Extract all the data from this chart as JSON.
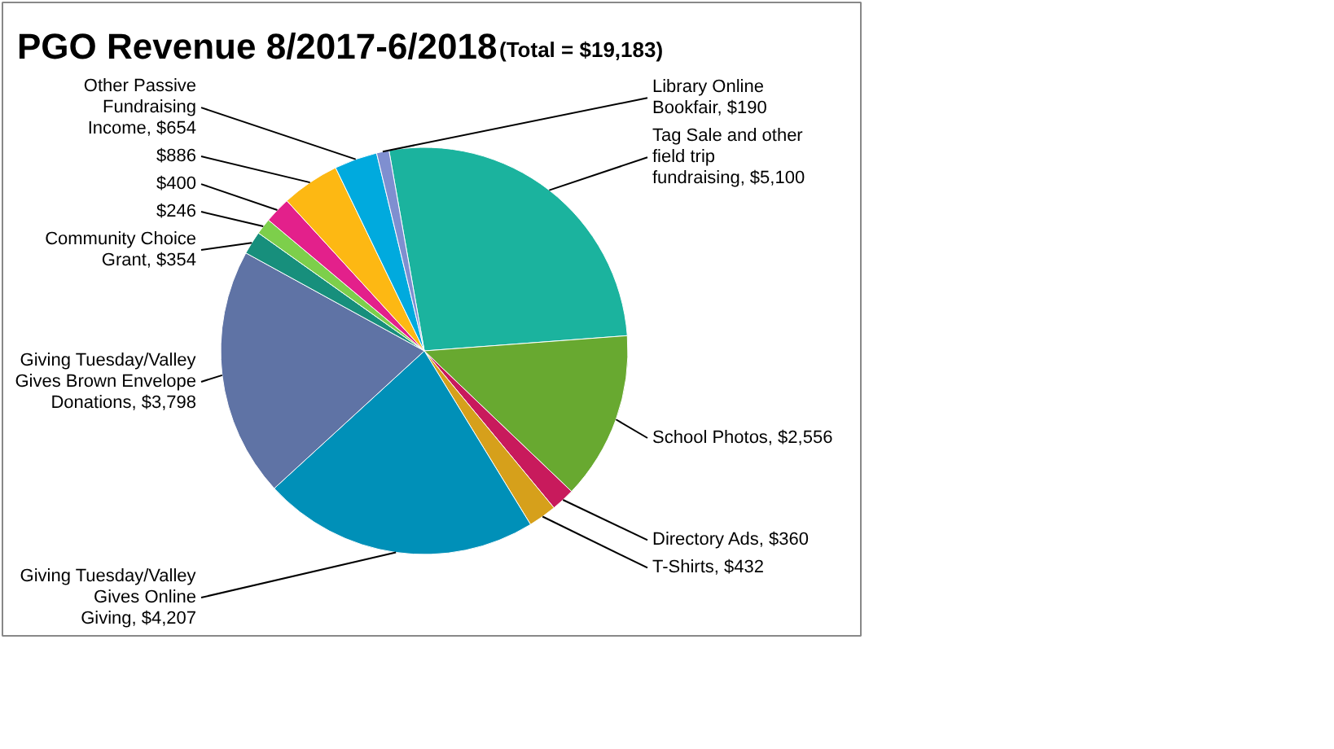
{
  "chart_data": {
    "type": "pie",
    "title": "PGO Revenue 8/2017-6/2018",
    "subtitle": "(Total = $19,183)",
    "categories": [
      "Tag Sale and other field trip fundraising",
      "School Photos",
      "Directory Ads",
      "T-Shirts",
      "Giving Tuesday/Valley Gives Online Giving",
      "Giving Tuesday/Valley Gives Brown Envelope Donations",
      "Community Choice Grant",
      null,
      null,
      null,
      "Other Passive Fundraising Income",
      "Library Online Bookfair"
    ],
    "values": [
      5100,
      2556,
      360,
      432,
      4207,
      3798,
      354,
      246,
      400,
      886,
      654,
      190
    ],
    "value_labels": [
      "$5,100",
      "$2,556",
      "$360",
      "$432",
      "$4,207",
      "$3,798",
      "$354",
      "$246",
      "$400",
      "$886",
      "$654",
      "$190"
    ],
    "colors": [
      "#1bb39e",
      "#68a930",
      "#c81a5c",
      "#d6a01b",
      "#0090b8",
      "#5f73a5",
      "#178f7c",
      "#7dcf4b",
      "#e3208b",
      "#fdb813",
      "#00aade",
      "#7f8fd0"
    ],
    "legend": false
  }
}
